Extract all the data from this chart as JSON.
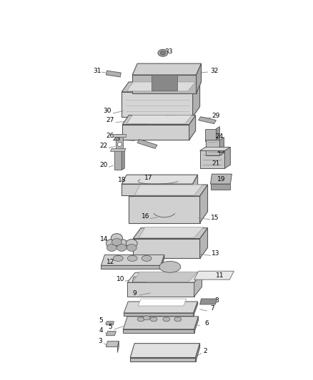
{
  "bg_color": "#ffffff",
  "figsize": [
    4.38,
    5.33
  ],
  "dpi": 100,
  "line_color": "#777777",
  "part_lc": "#555555",
  "label_fontsize": 6.5,
  "leader_lw": 0.6,
  "leader_color": "#888888"
}
